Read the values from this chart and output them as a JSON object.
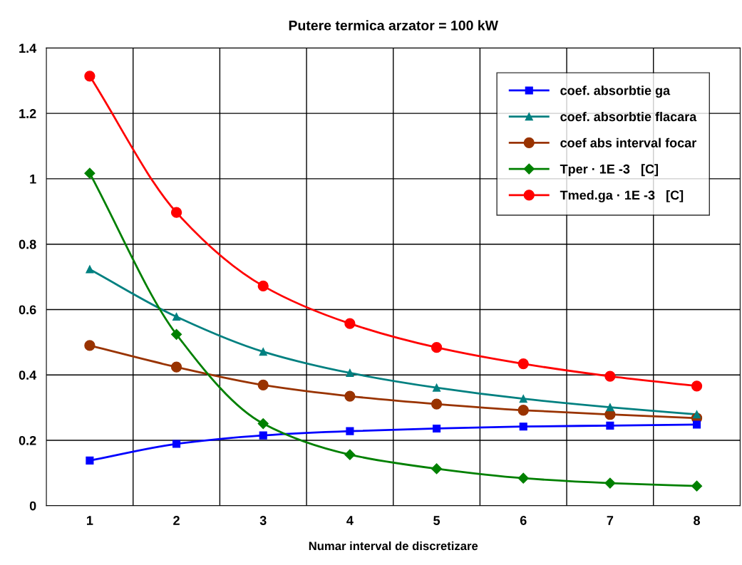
{
  "chart_data": {
    "type": "line",
    "title": "Putere termica arzator = 100 kW",
    "xlabel": "Numar interval de discretizare",
    "categories": [
      "1",
      "2",
      "3",
      "4",
      "5",
      "6",
      "7",
      "8"
    ],
    "series": [
      {
        "name": "coef. absorbtie ga",
        "color": "#0000ff",
        "marker": "square",
        "values": [
          0.138,
          0.189,
          0.215,
          0.228,
          0.236,
          0.242,
          0.245,
          0.248
        ]
      },
      {
        "name": "coef. absorbtie flacara",
        "color": "#008080",
        "marker": "triangle",
        "values": [
          0.723,
          0.578,
          0.471,
          0.406,
          0.361,
          0.327,
          0.301,
          0.279
        ]
      },
      {
        "name": "coef abs interval focar",
        "color": "#993300",
        "marker": "circle",
        "values": [
          0.49,
          0.424,
          0.369,
          0.335,
          0.311,
          0.292,
          0.279,
          0.268
        ]
      },
      {
        "name": "Tper · 1E -3   [C]",
        "color": "#008000",
        "marker": "diamond",
        "values": [
          1.017,
          0.524,
          0.251,
          0.156,
          0.113,
          0.084,
          0.069,
          0.06
        ]
      },
      {
        "name": "Tmed.ga · 1E -3   [C]",
        "color": "#ff0000",
        "marker": "circle",
        "values": [
          1.314,
          0.897,
          0.672,
          0.557,
          0.484,
          0.434,
          0.396,
          0.366
        ]
      }
    ],
    "ylim": [
      0,
      1.4
    ],
    "yticks": [
      0,
      0.2,
      0.4,
      0.6,
      0.8,
      1,
      1.2,
      1.4
    ],
    "grid": true,
    "legend": "top right",
    "line_style": "solid"
  }
}
